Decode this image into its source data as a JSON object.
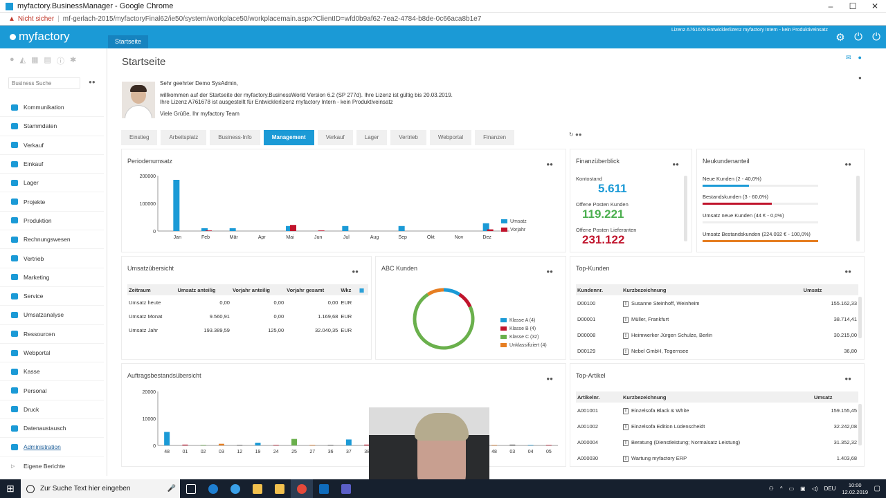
{
  "browser": {
    "window_title": "myfactory.BusinessManager - Google Chrome",
    "security_label": "Nicht sicher",
    "url": "mf-gerlach-2015/myfactoryFinal62/ie50/system/workplace50/workplacemain.aspx?ClientID=wfd0b9af62-7ea2-4784-b8de-0c66aca8b1e7"
  },
  "header": {
    "logo": "myfactory",
    "tab": "Startseite",
    "license": "Lizenz A761678 Entwicklerlizenz myfactory Intern - kein Produktiveinsatz",
    "icons": [
      "gear-icon",
      "power-icon",
      "logout-icon"
    ]
  },
  "sidebar": {
    "search_placeholder": "Business Suche",
    "items": [
      {
        "label": "Kommunikation"
      },
      {
        "label": "Stammdaten"
      },
      {
        "label": "Verkauf"
      },
      {
        "label": "Einkauf"
      },
      {
        "label": "Lager"
      },
      {
        "label": "Projekte"
      },
      {
        "label": "Produktion"
      },
      {
        "label": "Rechnungswesen"
      },
      {
        "label": "Vertrieb"
      },
      {
        "label": "Marketing"
      },
      {
        "label": "Service"
      },
      {
        "label": "Umsatzanalyse"
      },
      {
        "label": "Ressourcen"
      },
      {
        "label": "Webportal"
      },
      {
        "label": "Kasse"
      },
      {
        "label": "Personal"
      },
      {
        "label": "Druck"
      },
      {
        "label": "Datenaustausch"
      },
      {
        "label": "Administration"
      },
      {
        "label": "Eigene Berichte"
      }
    ]
  },
  "page": {
    "title": "Startseite",
    "greeting_line1": "Sehr geehrter Demo SysAdmin,",
    "greeting_line2": "willkommen auf der Startseite der myfactory.BusinessWorld Version 6.2 (SP 277d). Ihre Lizenz ist gültig bis 20.03.2019.",
    "greeting_line3": "Ihre Lizenz A761678 ist ausgestellt für Entwicklerlizenz myfactory Intern - kein Produktiveinsatz",
    "greeting_line4": "Viele Grüße, Ihr myfactory Team",
    "tabs": [
      "Einstieg",
      "Arbeitsplatz",
      "Business-Info",
      "Management",
      "Verkauf",
      "Lager",
      "Vertrieb",
      "Webportal",
      "Finanzen"
    ],
    "selected_tab": "Management"
  },
  "periodenumsatz": {
    "title": "Periodenumsatz",
    "legend": [
      "Umsatz",
      "Vorjahr"
    ],
    "colors": {
      "umsatz": "#1b9ad6",
      "vorjahr": "#c0142c"
    },
    "chart_data": {
      "type": "bar",
      "categories": [
        "Jan",
        "Feb",
        "Mär",
        "Apr",
        "Mai",
        "Jun",
        "Jul",
        "Aug",
        "Sep",
        "Okt",
        "Nov",
        "Dez"
      ],
      "series": [
        {
          "name": "Umsatz",
          "values": [
            185000,
            10000,
            10000,
            0,
            18000,
            0,
            18000,
            0,
            18000,
            0,
            0,
            28000
          ]
        },
        {
          "name": "Vorjahr",
          "values": [
            0,
            2000,
            0,
            0,
            22000,
            2000,
            0,
            0,
            0,
            0,
            0,
            6000
          ]
        }
      ],
      "yticks": [
        "200000",
        "100000",
        "0"
      ],
      "ylim": [
        0,
        200000
      ]
    }
  },
  "finanzueberblick": {
    "title": "Finanzüberblick",
    "kontostand_label": "Kontostand",
    "kontostand_value": "5.611",
    "op_kunden_label": "Offene Posten Kunden",
    "op_kunden_value": "119.221",
    "op_lieferanten_label": "Offene Posten Lieferanten",
    "op_lieferanten_value": "231.122",
    "colors": {
      "kontostand": "#1b9ad6",
      "kunden": "#4caf50",
      "lieferanten": "#c0142c"
    }
  },
  "neukundenanteil": {
    "title": "Neukundenanteil",
    "rows": [
      {
        "label": "Neue Kunden (2 - 40,0%)",
        "fraction": 0.4,
        "color": "#1b9ad6"
      },
      {
        "label": "Bestandskunden (3 - 60,0%)",
        "fraction": 0.6,
        "color": "#c0142c"
      },
      {
        "label": "Umsatz neue Kunden (44 € - 0,0%)",
        "fraction": 0.0,
        "color": "#4caf50"
      },
      {
        "label": "Umsatz Bestandskunden (224.092 € - 100,0%)",
        "fraction": 1.0,
        "color": "#e67e22"
      }
    ]
  },
  "umsatzuebersicht": {
    "title": "Umsatzübersicht",
    "columns": [
      "Zeitraum",
      "Umsatz anteilig",
      "Vorjahr anteilig",
      "Vorjahr gesamt",
      "Wkz"
    ],
    "rows": [
      [
        "Umsatz heute",
        "0,00",
        "0,00",
        "0,00",
        "EUR"
      ],
      [
        "Umsatz Monat",
        "9.560,91",
        "0,00",
        "1.169,68",
        "EUR"
      ],
      [
        "Umsatz Jahr",
        "193.389,59",
        "125,00",
        "32.040,35",
        "EUR"
      ]
    ]
  },
  "abc_kunden": {
    "title": "ABC Kunden",
    "legend": [
      "Klasse A (4)",
      "Klasse B (4)",
      "Klasse C (32)",
      "Unklassifiziert (4)"
    ],
    "colors": [
      "#1b9ad6",
      "#c0142c",
      "#6ab04c",
      "#e67e22"
    ],
    "chart_data": {
      "type": "pie",
      "labels": [
        "Klasse A (4)",
        "Klasse B (4)",
        "Klasse C (32)",
        "Unklassifiziert (4)"
      ],
      "values": [
        4,
        4,
        32,
        4
      ]
    }
  },
  "top_kunden": {
    "title": "Top-Kunden",
    "columns": [
      "Kundennr.",
      "Kurzbezeichnung",
      "Umsatz"
    ],
    "rows": [
      [
        "D00100",
        "Susanne Steinhoff, Weinheim",
        "155.162,33"
      ],
      [
        "D00001",
        "Müller, Frankfurt",
        "38.714,41"
      ],
      [
        "D00008",
        "Heimwerker Jürgen Schulze, Berlin",
        "30.215,00"
      ],
      [
        "D00129",
        "Nebel GmbH, Tegernsee",
        "36,80"
      ]
    ]
  },
  "auftragsbestand": {
    "title": "Auftragsbestandsübersicht",
    "chart_data": {
      "type": "bar",
      "categories": [
        "48",
        "01",
        "02",
        "03",
        "12",
        "19",
        "24",
        "25",
        "27",
        "36",
        "37",
        "38",
        "48",
        "49",
        "52",
        "16",
        "17",
        "47",
        "48",
        "03",
        "04",
        "05"
      ],
      "values": [
        5000,
        300,
        200,
        600,
        200,
        1000,
        200,
        2400,
        200,
        200,
        2200,
        300,
        1400,
        8800,
        1200,
        500,
        2300,
        200,
        200,
        300,
        200,
        200
      ],
      "yticks": [
        "20000",
        "10000",
        "0"
      ],
      "ylim": [
        0,
        20000
      ]
    }
  },
  "top_artikel": {
    "title": "Top-Artikel",
    "columns": [
      "Artikelnr.",
      "Kurzbezeichnung",
      "Umsatz"
    ],
    "rows": [
      [
        "A001001",
        "Einzelsofa Black & White",
        "159.155,45"
      ],
      [
        "A001002",
        "Einzelsofa Edition Lüdenscheidt",
        "32.242,08"
      ],
      [
        "A000004",
        "Beratung (Dienstleistung; Normalsatz Leistung)",
        "31.352,32"
      ],
      [
        "A000030",
        "Wartung myfactory ERP",
        "1.403,68"
      ]
    ]
  },
  "taskbar": {
    "search_placeholder": "Zur Suche Text hier eingeben",
    "lang": "DEU",
    "time": "10:00",
    "date": "12.02.2019"
  }
}
